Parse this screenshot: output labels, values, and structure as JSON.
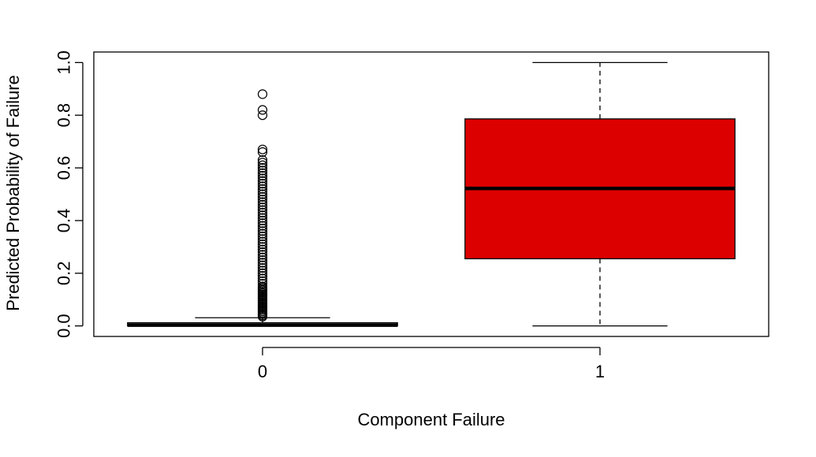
{
  "chart_data": {
    "type": "boxplot",
    "title": "",
    "xlabel": "Component Failure",
    "ylabel": "Predicted Probability of Failure",
    "ylim": [
      -0.04,
      1.04
    ],
    "yticks": [
      "0.0",
      "0.2",
      "0.4",
      "0.6",
      "0.8",
      "1.0"
    ],
    "ytick_values": [
      0.0,
      0.2,
      0.4,
      0.6,
      0.8,
      1.0
    ],
    "categories": [
      "0",
      "1"
    ],
    "grid": false,
    "legend": "none",
    "boxes": [
      {
        "category": "0",
        "whisker_low": 0.0,
        "q1": 0.0,
        "median": 0.003,
        "q3": 0.012,
        "whisker_high": 0.031,
        "fill": "#ffffff",
        "outliers": [
          0.035,
          0.04,
          0.045,
          0.05,
          0.055,
          0.06,
          0.065,
          0.07,
          0.075,
          0.08,
          0.085,
          0.09,
          0.095,
          0.1,
          0.105,
          0.11,
          0.115,
          0.12,
          0.125,
          0.13,
          0.135,
          0.14,
          0.145,
          0.15,
          0.16,
          0.17,
          0.18,
          0.19,
          0.2,
          0.21,
          0.22,
          0.23,
          0.24,
          0.25,
          0.26,
          0.27,
          0.28,
          0.29,
          0.3,
          0.31,
          0.32,
          0.33,
          0.34,
          0.35,
          0.36,
          0.37,
          0.38,
          0.39,
          0.4,
          0.41,
          0.42,
          0.43,
          0.44,
          0.45,
          0.46,
          0.47,
          0.48,
          0.49,
          0.5,
          0.51,
          0.52,
          0.53,
          0.54,
          0.55,
          0.56,
          0.57,
          0.58,
          0.59,
          0.6,
          0.61,
          0.62,
          0.63,
          0.66,
          0.67,
          0.8,
          0.82,
          0.88
        ]
      },
      {
        "category": "1",
        "whisker_low": 0.0,
        "q1": 0.255,
        "median": 0.522,
        "q3": 0.786,
        "whisker_high": 1.0,
        "fill": "#dd0000",
        "outliers": []
      }
    ]
  }
}
